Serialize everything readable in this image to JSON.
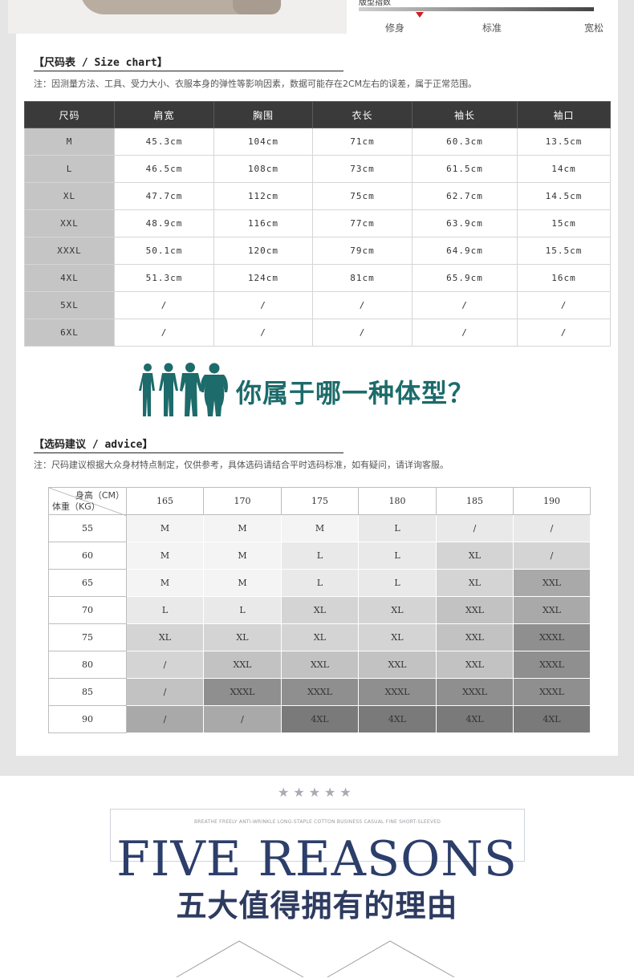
{
  "fit": {
    "caption": "版型指数",
    "labels": [
      "修身",
      "标准",
      "宽松"
    ],
    "level": 0.26
  },
  "size_chart": {
    "title": "【尺码表 / Size chart】",
    "note": "注：因测量方法、工具、受力大小、衣服本身的弹性等影响因素，数据可能存在2CM左右的误差，属于正常范围。",
    "headers": [
      "尺码",
      "肩宽",
      "胸围",
      "衣长",
      "袖长",
      "袖口"
    ],
    "rows": [
      [
        "M",
        "45.3cm",
        "104cm",
        "71cm",
        "60.3cm",
        "13.5cm"
      ],
      [
        "L",
        "46.5cm",
        "108cm",
        "73cm",
        "61.5cm",
        "14cm"
      ],
      [
        "XL",
        "47.7cm",
        "112cm",
        "75cm",
        "62.7cm",
        "14.5cm"
      ],
      [
        "XXL",
        "48.9cm",
        "116cm",
        "77cm",
        "63.9cm",
        "15cm"
      ],
      [
        "XXXL",
        "50.1cm",
        "120cm",
        "79cm",
        "64.9cm",
        "15.5cm"
      ],
      [
        "4XL",
        "51.3cm",
        "124cm",
        "81cm",
        "65.9cm",
        "16cm"
      ],
      [
        "5XL",
        "/",
        "/",
        "/",
        "/",
        "/"
      ],
      [
        "6XL",
        "/",
        "/",
        "/",
        "/",
        "/"
      ]
    ]
  },
  "body_type": {
    "title": "你属于哪一种体型？",
    "color": "#1d6b6b"
  },
  "advice": {
    "title": "【选码建议 / advice】",
    "note": "注：尺码建议根据大众身材特点制定，仅供参考，具体选码请结合平时选码标准，如有疑问，请详询客服。",
    "corner_top": "身高（CM）",
    "corner_bottom": "体重（KG）",
    "heights": [
      "165",
      "170",
      "175",
      "180",
      "185",
      "190"
    ],
    "rows": [
      {
        "weight": "55",
        "cells": [
          "M",
          "M",
          "M",
          "L",
          "/",
          "/"
        ],
        "shades": [
          1,
          1,
          1,
          2,
          2,
          2
        ]
      },
      {
        "weight": "60",
        "cells": [
          "M",
          "M",
          "L",
          "L",
          "XL",
          "/"
        ],
        "shades": [
          1,
          1,
          2,
          2,
          3,
          3
        ]
      },
      {
        "weight": "65",
        "cells": [
          "M",
          "M",
          "L",
          "L",
          "XL",
          "XXL"
        ],
        "shades": [
          1,
          1,
          2,
          2,
          3,
          5
        ]
      },
      {
        "weight": "70",
        "cells": [
          "L",
          "L",
          "XL",
          "XL",
          "XXL",
          "XXL"
        ],
        "shades": [
          2,
          2,
          3,
          3,
          4,
          5
        ]
      },
      {
        "weight": "75",
        "cells": [
          "XL",
          "XL",
          "XL",
          "XL",
          "XXL",
          "XXXL"
        ],
        "shades": [
          3,
          3,
          3,
          3,
          4,
          6
        ]
      },
      {
        "weight": "80",
        "cells": [
          "/",
          "XXL",
          "XXL",
          "XXL",
          "XXL",
          "XXXL"
        ],
        "shades": [
          3,
          4,
          4,
          4,
          4,
          6
        ]
      },
      {
        "weight": "85",
        "cells": [
          "/",
          "XXXL",
          "XXXL",
          "XXXL",
          "XXXL",
          "XXXL"
        ],
        "shades": [
          4,
          6,
          6,
          6,
          6,
          6
        ]
      },
      {
        "weight": "90",
        "cells": [
          "/",
          "/",
          "4XL",
          "4XL",
          "4XL",
          "4XL"
        ],
        "shades": [
          5,
          5,
          7,
          7,
          7,
          7
        ]
      }
    ]
  },
  "reasons": {
    "stars": "★★★★★",
    "tagline": "BREATHE FREELY ANTI-WRINKLE LONG-STAPLE COTTON BUSINESS CASUAL FINE SHORT-SLEEVED",
    "title": "FIVE REASONS",
    "subtitle": "五大值得拥有的理由",
    "title_color": "#2c3e6a"
  }
}
